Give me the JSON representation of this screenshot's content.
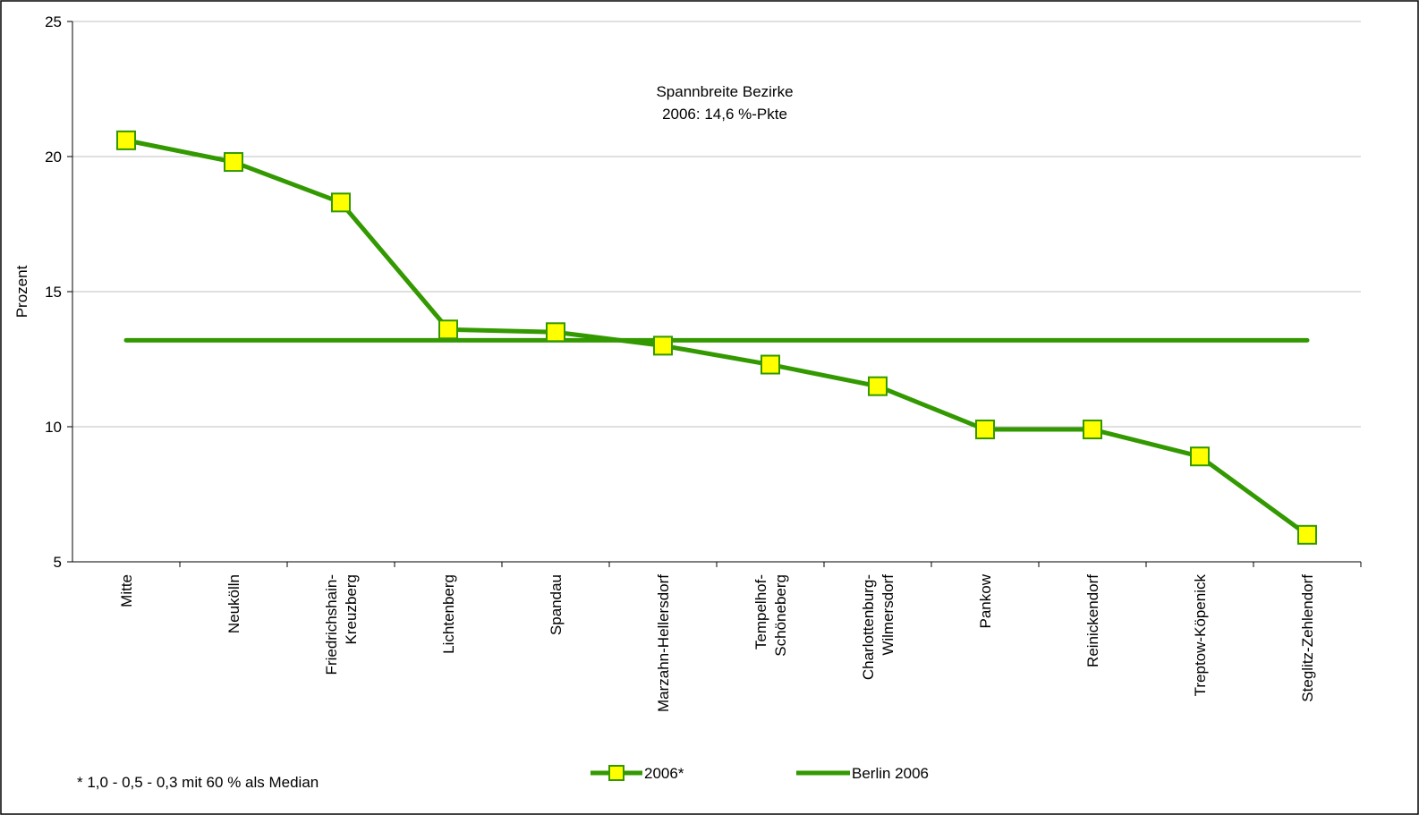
{
  "chart_data": {
    "type": "line",
    "title": "",
    "ylabel": "Prozent",
    "xlabel": "",
    "ylim": [
      5,
      25
    ],
    "yticks": [
      5,
      10,
      15,
      20,
      25
    ],
    "grid": true,
    "legend_position": "bottom",
    "categories": [
      [
        "Mitte"
      ],
      [
        "Neukölln"
      ],
      [
        "Friedrichshain-",
        "Kreuzberg"
      ],
      [
        "Lichtenberg"
      ],
      [
        "Spandau"
      ],
      [
        "Marzahn-Hellersdorf"
      ],
      [
        "Tempelhof-",
        "Schöneberg"
      ],
      [
        "Charlottenburg-",
        "Wilmersdorf"
      ],
      [
        "Pankow"
      ],
      [
        "Reinickendorf"
      ],
      [
        "Treptow-Köpenick"
      ],
      [
        "Steglitz-Zehlendorf"
      ]
    ],
    "series": [
      {
        "name": "2006*",
        "color": "#339900",
        "marker": "square",
        "marker_fill": "#ffff00",
        "values": [
          20.6,
          19.8,
          18.3,
          13.6,
          13.5,
          13.0,
          12.3,
          11.5,
          9.9,
          9.9,
          8.9,
          6.0
        ]
      },
      {
        "name": "Berlin 2006",
        "color": "#339900",
        "marker": "none",
        "values": [
          13.2,
          13.2,
          13.2,
          13.2,
          13.2,
          13.2,
          13.2,
          13.2,
          13.2,
          13.2,
          13.2,
          13.2
        ]
      }
    ],
    "annotations": {
      "range_text_line1": "Spannbreite Bezirke",
      "range_text_line2": "2006: 14,6 %-Pkte",
      "footnote": "* 1,0 - 0,5 - 0,3 mit 60 % als Median"
    }
  }
}
